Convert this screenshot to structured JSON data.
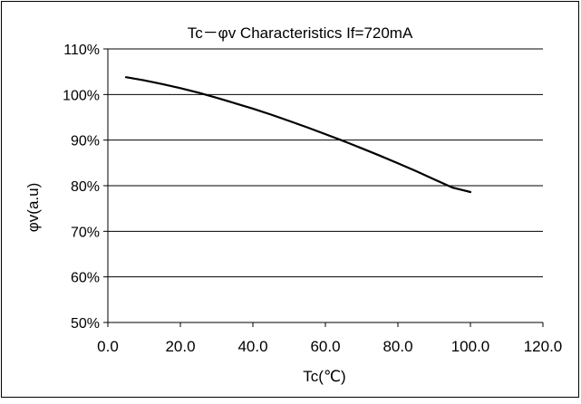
{
  "chart_data": {
    "type": "line",
    "title": "Tc－φv  Characteristics      If=720mA",
    "xlabel": "Tc(℃)",
    "ylabel": "φv(a.u)",
    "xlim": [
      0,
      120
    ],
    "ylim": [
      50,
      110
    ],
    "x_ticks": [
      "0.0",
      "20.0",
      "40.0",
      "60.0",
      "80.0",
      "100.0",
      "120.0"
    ],
    "y_ticks": [
      "50%",
      "60%",
      "70%",
      "80%",
      "90%",
      "100%",
      "110%"
    ],
    "grid": "horizontal",
    "series": [
      {
        "x": [
          5,
          10,
          15,
          20,
          25,
          30,
          35,
          40,
          45,
          50,
          55,
          60,
          65,
          70,
          75,
          80,
          85,
          90,
          95,
          100
        ],
        "y": [
          103.8,
          103.1,
          102.3,
          101.4,
          100.4,
          99.3,
          98.1,
          96.9,
          95.6,
          94.2,
          92.8,
          91.3,
          89.8,
          88.2,
          86.6,
          84.9,
          83.2,
          81.4,
          79.6,
          78.6
        ],
        "color": "#000000"
      }
    ]
  }
}
